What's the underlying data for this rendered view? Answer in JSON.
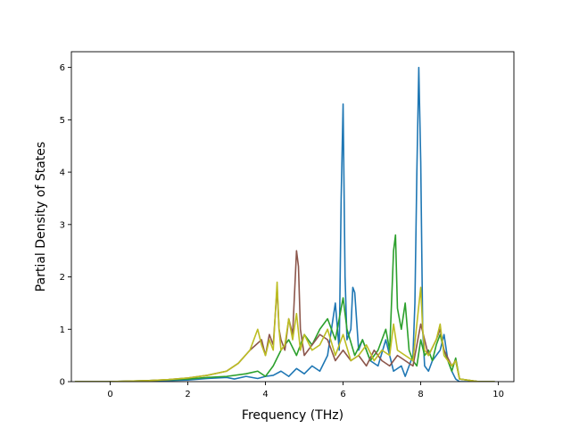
{
  "chart_data": {
    "type": "line",
    "title": "",
    "xlabel": "Frequency (THz)",
    "ylabel": "Partial Density of States",
    "xlim": [
      -1.0,
      10.4
    ],
    "ylim": [
      0,
      6.3
    ],
    "grid": false,
    "legend": "none",
    "x_ticks": [
      0,
      2,
      4,
      6,
      8,
      10
    ],
    "x_tick_labels": [
      "0",
      "2",
      "4",
      "6",
      "8",
      "10"
    ],
    "y_ticks": [
      0,
      1,
      2,
      3,
      4,
      5,
      6
    ],
    "y_tick_labels": [
      "0",
      "1",
      "2",
      "3",
      "4",
      "5",
      "6"
    ],
    "series": [
      {
        "color": "#1f77b4",
        "x": [
          -0.9,
          0,
          1,
          2,
          2.5,
          3,
          3.2,
          3.5,
          3.8,
          4.0,
          4.2,
          4.4,
          4.6,
          4.8,
          5.0,
          5.2,
          5.4,
          5.6,
          5.8,
          5.9,
          5.95,
          6.0,
          6.05,
          6.1,
          6.2,
          6.25,
          6.3,
          6.4,
          6.5,
          6.7,
          6.9,
          7.1,
          7.3,
          7.5,
          7.6,
          7.7,
          7.8,
          7.85,
          7.9,
          7.95,
          8.0,
          8.05,
          8.1,
          8.2,
          8.3,
          8.4,
          8.5,
          8.6,
          8.7,
          8.8,
          8.9,
          9.0,
          9.5,
          9.9
        ],
        "y": [
          0,
          0,
          0.01,
          0.03,
          0.06,
          0.08,
          0.05,
          0.1,
          0.06,
          0.1,
          0.12,
          0.2,
          0.1,
          0.25,
          0.15,
          0.3,
          0.2,
          0.5,
          1.5,
          0.6,
          3.5,
          5.3,
          2.0,
          0.8,
          1.0,
          1.8,
          1.7,
          0.6,
          0.8,
          0.4,
          0.3,
          0.8,
          0.2,
          0.3,
          0.1,
          0.3,
          0.5,
          1.5,
          4.0,
          6.0,
          4.2,
          1.0,
          0.3,
          0.2,
          0.4,
          0.5,
          0.6,
          0.9,
          0.4,
          0.2,
          0.05,
          0,
          0,
          0
        ]
      },
      {
        "color": "#2ca02c",
        "x": [
          -0.9,
          0,
          1,
          2,
          2.5,
          3,
          3.5,
          3.8,
          4.0,
          4.2,
          4.4,
          4.6,
          4.8,
          5.0,
          5.2,
          5.4,
          5.6,
          5.8,
          6.0,
          6.1,
          6.3,
          6.5,
          6.7,
          6.9,
          7.1,
          7.2,
          7.3,
          7.35,
          7.4,
          7.5,
          7.6,
          7.7,
          7.8,
          7.9,
          8.0,
          8.1,
          8.2,
          8.3,
          8.4,
          8.5,
          8.6,
          8.7,
          8.8,
          8.9,
          9.0,
          9.5,
          9.9
        ],
        "y": [
          0,
          0,
          0.02,
          0.05,
          0.08,
          0.1,
          0.15,
          0.2,
          0.1,
          0.3,
          0.6,
          0.8,
          0.5,
          0.9,
          0.7,
          1.0,
          1.2,
          0.8,
          1.6,
          1.0,
          0.5,
          0.8,
          0.4,
          0.6,
          1.0,
          0.6,
          2.5,
          2.8,
          1.4,
          1.0,
          1.5,
          0.6,
          0.4,
          0.3,
          0.8,
          0.5,
          0.6,
          0.4,
          0.7,
          0.9,
          0.6,
          0.4,
          0.2,
          0.45,
          0.05,
          0,
          0
        ]
      },
      {
        "color": "#8c564b",
        "x": [
          -0.9,
          0,
          0.5,
          1,
          1.5,
          2,
          2.5,
          3,
          3.3,
          3.6,
          3.9,
          4.0,
          4.1,
          4.2,
          4.3,
          4.35,
          4.4,
          4.5,
          4.6,
          4.7,
          4.8,
          4.85,
          4.9,
          5.0,
          5.2,
          5.4,
          5.6,
          5.8,
          6.0,
          6.2,
          6.4,
          6.6,
          6.8,
          7.0,
          7.2,
          7.4,
          7.6,
          7.8,
          8.0,
          8.2,
          8.4,
          8.5,
          8.6,
          8.8,
          8.9,
          9.0,
          9.5,
          9.9
        ],
        "y": [
          0,
          0,
          0.01,
          0.02,
          0.04,
          0.07,
          0.12,
          0.2,
          0.35,
          0.6,
          0.8,
          0.5,
          0.9,
          0.7,
          1.8,
          1.0,
          0.8,
          0.6,
          1.2,
          0.9,
          2.5,
          2.2,
          1.0,
          0.5,
          0.7,
          0.9,
          0.8,
          0.4,
          0.6,
          0.4,
          0.5,
          0.3,
          0.6,
          0.4,
          0.3,
          0.5,
          0.4,
          0.3,
          1.1,
          0.5,
          0.8,
          1.0,
          0.6,
          0.3,
          0.4,
          0.05,
          0,
          0
        ]
      },
      {
        "color": "#bcbd22",
        "x": [
          -0.9,
          0,
          0.5,
          1,
          1.5,
          2,
          2.5,
          3,
          3.3,
          3.6,
          3.8,
          3.9,
          4.0,
          4.1,
          4.2,
          4.3,
          4.35,
          4.4,
          4.5,
          4.6,
          4.7,
          4.8,
          4.9,
          5.0,
          5.2,
          5.4,
          5.6,
          5.8,
          6.0,
          6.2,
          6.4,
          6.6,
          6.8,
          7.0,
          7.2,
          7.3,
          7.4,
          7.6,
          7.8,
          8.0,
          8.05,
          8.1,
          8.2,
          8.4,
          8.5,
          8.6,
          8.8,
          8.9,
          9.0,
          9.5,
          9.9
        ],
        "y": [
          0,
          0,
          0.01,
          0.02,
          0.04,
          0.07,
          0.12,
          0.2,
          0.35,
          0.6,
          1.0,
          0.7,
          0.5,
          0.8,
          0.6,
          1.9,
          1.0,
          0.6,
          0.7,
          1.2,
          0.8,
          1.3,
          0.6,
          0.9,
          0.6,
          0.7,
          1.0,
          0.5,
          0.9,
          0.4,
          0.5,
          0.7,
          0.4,
          0.6,
          0.5,
          1.1,
          0.6,
          0.5,
          0.4,
          1.8,
          1.0,
          0.6,
          0.5,
          0.8,
          1.1,
          0.5,
          0.3,
          0.4,
          0.05,
          0,
          0
        ]
      }
    ]
  }
}
